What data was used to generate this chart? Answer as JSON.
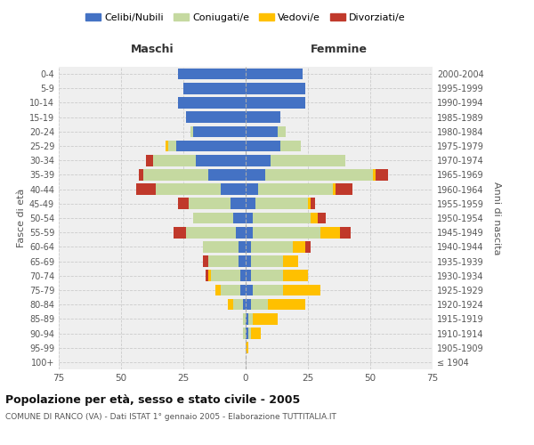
{
  "age_groups": [
    "100+",
    "95-99",
    "90-94",
    "85-89",
    "80-84",
    "75-79",
    "70-74",
    "65-69",
    "60-64",
    "55-59",
    "50-54",
    "45-49",
    "40-44",
    "35-39",
    "30-34",
    "25-29",
    "20-24",
    "15-19",
    "10-14",
    "5-9",
    "0-4"
  ],
  "birth_years": [
    "≤ 1904",
    "1905-1909",
    "1910-1914",
    "1915-1919",
    "1920-1924",
    "1925-1929",
    "1930-1934",
    "1935-1939",
    "1940-1944",
    "1945-1949",
    "1950-1954",
    "1955-1959",
    "1960-1964",
    "1965-1969",
    "1970-1974",
    "1975-1979",
    "1980-1984",
    "1985-1989",
    "1990-1994",
    "1995-1999",
    "2000-2004"
  ],
  "maschi": {
    "celibi": [
      0,
      0,
      0,
      0,
      1,
      2,
      2,
      3,
      3,
      4,
      5,
      6,
      10,
      15,
      20,
      28,
      21,
      24,
      27,
      25,
      27
    ],
    "coniugati": [
      0,
      0,
      1,
      1,
      4,
      8,
      12,
      12,
      14,
      20,
      16,
      17,
      26,
      26,
      17,
      3,
      1,
      0,
      0,
      0,
      0
    ],
    "vedove": [
      0,
      0,
      0,
      0,
      2,
      2,
      1,
      0,
      0,
      0,
      0,
      0,
      0,
      0,
      0,
      1,
      0,
      0,
      0,
      0,
      0
    ],
    "divorziate": [
      0,
      0,
      0,
      0,
      0,
      0,
      1,
      2,
      0,
      5,
      0,
      4,
      8,
      2,
      3,
      0,
      0,
      0,
      0,
      0,
      0
    ]
  },
  "femmine": {
    "nubili": [
      0,
      0,
      1,
      1,
      2,
      3,
      2,
      2,
      2,
      3,
      3,
      4,
      5,
      8,
      10,
      14,
      13,
      14,
      24,
      24,
      23
    ],
    "coniugate": [
      0,
      0,
      1,
      2,
      7,
      12,
      13,
      13,
      17,
      27,
      23,
      21,
      30,
      43,
      30,
      8,
      3,
      0,
      0,
      0,
      0
    ],
    "vedove": [
      0,
      1,
      4,
      10,
      15,
      15,
      10,
      6,
      5,
      8,
      3,
      1,
      1,
      1,
      0,
      0,
      0,
      0,
      0,
      0,
      0
    ],
    "divorziate": [
      0,
      0,
      0,
      0,
      0,
      0,
      0,
      0,
      2,
      4,
      3,
      2,
      7,
      5,
      0,
      0,
      0,
      0,
      0,
      0,
      0
    ]
  },
  "colors": {
    "celibi": "#4472c4",
    "coniugati": "#c5d9a0",
    "vedove": "#ffc000",
    "divorziate": "#c0392b"
  },
  "xlim": 75,
  "title": "Popolazione per età, sesso e stato civile - 2005",
  "subtitle": "COMUNE DI RANCO (VA) - Dati ISTAT 1° gennaio 2005 - Elaborazione TUTTITALIA.IT",
  "xlabel_left": "Maschi",
  "xlabel_right": "Femmine",
  "ylabel_left": "Fasce di età",
  "ylabel_right": "Anni di nascita",
  "legend_labels": [
    "Celibi/Nubili",
    "Coniugati/e",
    "Vedovi/e",
    "Divorziati/e"
  ],
  "background_color": "#ffffff",
  "plot_bg_color": "#efefef"
}
